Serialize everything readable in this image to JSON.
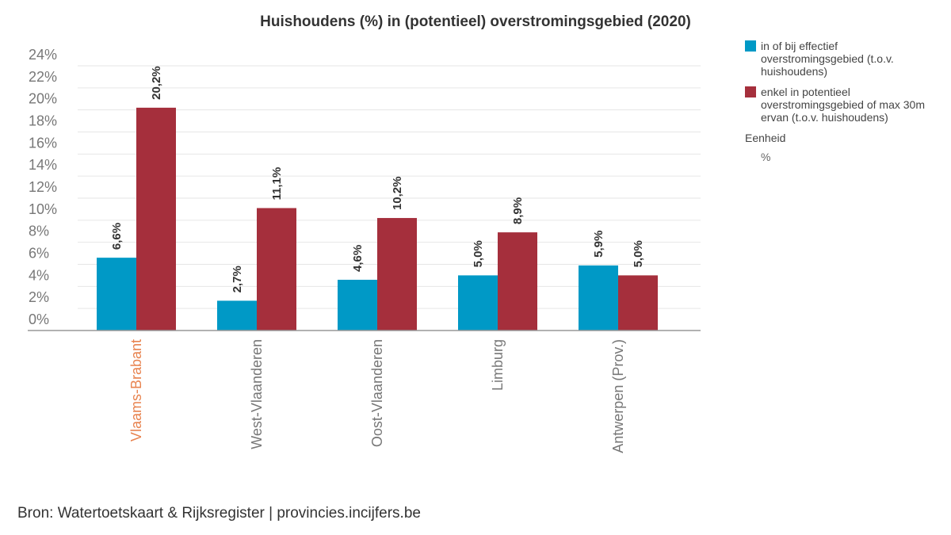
{
  "chart_data": {
    "type": "bar",
    "title": "Huishoudens (%) in (potentieel) overstromingsgebied (2020)",
    "categories": [
      "Vlaams-Brabant",
      "West-Vlaanderen",
      "Oost-Vlaanderen",
      "Limburg",
      "Antwerpen (Prov.)"
    ],
    "highlight_category": "Vlaams-Brabant",
    "series": [
      {
        "name": "in of bij effectief overstromingsgebied (t.o.v. huishoudens)",
        "color": "#0099c6",
        "values": [
          6.6,
          2.7,
          4.6,
          5.0,
          5.9
        ],
        "labels": [
          "6,6%",
          "2,7%",
          "4,6%",
          "5,0%",
          "5,9%"
        ]
      },
      {
        "name": "enkel in potentieel overstromingsgebied of max 30m ervan (t.o.v. huishoudens)",
        "color": "#a52f3c",
        "values": [
          20.2,
          11.1,
          10.2,
          8.9,
          5.0
        ],
        "labels": [
          "20,2%",
          "11,1%",
          "10,2%",
          "8,9%",
          "5,0%"
        ]
      }
    ],
    "yticks": [
      "0%",
      "2%",
      "4%",
      "6%",
      "8%",
      "10%",
      "12%",
      "14%",
      "16%",
      "18%",
      "20%",
      "22%",
      "24%"
    ],
    "ylim": [
      0,
      24
    ],
    "grid": true,
    "legend_position": "right"
  },
  "legend": {
    "unit_label": "Eenheid",
    "unit_value": "%"
  },
  "colors": {
    "highlight_tick": "#e8834f",
    "tick": "#777777"
  },
  "source": "Bron: Watertoetskaart & Rijksregister | provincies.incijfers.be"
}
